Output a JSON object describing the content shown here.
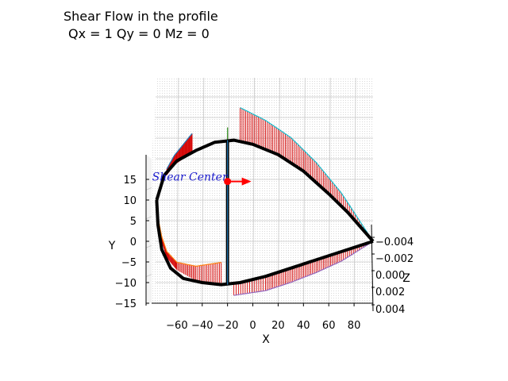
{
  "title_lines": [
    "Shear Flow in the profile",
    "Qx = 1 Qy = 0 Mz = 0"
  ],
  "chart_data": {
    "type": "3d-line",
    "title": "Shear Flow in the profile\nQx = 1 Qy = 0 Mz = 0",
    "xlabel": "X",
    "ylabel": "Y",
    "zlabel": "Z",
    "xlim": [
      -80,
      95
    ],
    "ylim": [
      -15,
      20
    ],
    "zlim": [
      -0.006,
      0.004
    ],
    "x_ticks": [
      -60,
      -40,
      -20,
      0,
      20,
      40,
      60,
      80
    ],
    "y_ticks": [
      -15,
      -10,
      -5,
      0,
      5,
      10,
      15
    ],
    "z_ticks": [
      -0.004,
      -0.002,
      0.0,
      0.002,
      0.004
    ],
    "x_tick_labels": [
      "−60",
      "−40",
      "−20",
      "0",
      "20",
      "40",
      "60",
      "80"
    ],
    "y_tick_labels": [
      "−15",
      "−10",
      "−5",
      "0",
      "5",
      "10",
      "15"
    ],
    "z_tick_labels": [
      "−0.004",
      "−0.002",
      "0.000",
      "0.002",
      "0.004"
    ],
    "grid": true,
    "shear_center": {
      "label": "Shear Center",
      "x": -20,
      "y": 14.5
    },
    "profile": {
      "upper": [
        [
          -76,
          10
        ],
        [
          -70,
          16
        ],
        [
          -60,
          19.5
        ],
        [
          -45,
          22
        ],
        [
          -30,
          24
        ],
        [
          -15,
          24.5
        ],
        [
          0,
          23.5
        ],
        [
          20,
          21
        ],
        [
          40,
          17
        ],
        [
          60,
          11.5
        ],
        [
          75,
          7
        ],
        [
          95,
          0
        ]
      ],
      "lower": [
        [
          -76,
          10
        ],
        [
          -75,
          4
        ],
        [
          -72,
          -2
        ],
        [
          -65,
          -6.5
        ],
        [
          -55,
          -9
        ],
        [
          -40,
          -10
        ],
        [
          -25,
          -10.5
        ],
        [
          -10,
          -10
        ],
        [
          10,
          -8.5
        ],
        [
          30,
          -6.5
        ],
        [
          50,
          -4.5
        ],
        [
          70,
          -2.5
        ],
        [
          95,
          0
        ]
      ],
      "spar": [
        [
          -20,
          24.5
        ],
        [
          -20,
          -10.5
        ]
      ]
    },
    "shear_flow": {
      "nose_upper": [
        [
          -68,
          16,
          8
        ],
        [
          -62,
          18.5,
          12
        ],
        [
          -55,
          20,
          18
        ],
        [
          -48,
          21.5,
          24
        ]
      ],
      "nose_lower": [
        [
          -75,
          5,
          4
        ],
        [
          -72,
          0,
          6
        ],
        [
          -68,
          -4,
          8
        ],
        [
          -60,
          -7,
          10
        ],
        [
          -45,
          -9.5,
          18
        ],
        [
          -25,
          -10.5,
          28
        ]
      ],
      "spar_web": [
        [
          -20,
          24.5,
          16
        ],
        [
          -20,
          5,
          4
        ],
        [
          -20,
          -10.5,
          10
        ]
      ],
      "top_skin": [
        [
          -10,
          24.3,
          42
        ],
        [
          10,
          22,
          38
        ],
        [
          30,
          19,
          32
        ],
        [
          50,
          14.5,
          24
        ],
        [
          70,
          9,
          14
        ],
        [
          92,
          1,
          2
        ]
      ],
      "bottom_skin": [
        [
          -15,
          -10.4,
          -14
        ],
        [
          10,
          -8.5,
          -18
        ],
        [
          30,
          -6.5,
          -18
        ],
        [
          50,
          -4.5,
          -16
        ],
        [
          70,
          -2.5,
          -12
        ],
        [
          92,
          -0.2,
          -2
        ]
      ]
    }
  }
}
